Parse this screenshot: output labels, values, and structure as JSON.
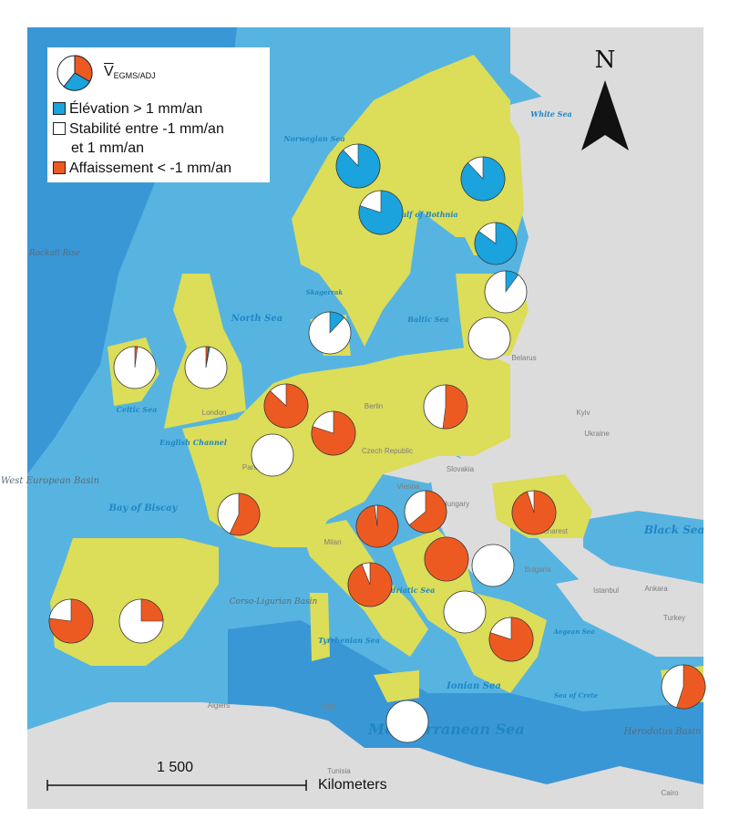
{
  "legend": {
    "symbol": "V",
    "subscript": "EGMS/ADJ",
    "items": [
      {
        "label": "Élévation > 1 mm/an",
        "color": "#1aa3dc"
      },
      {
        "label": "Stabilité entre -1 mm/an",
        "label2": "et 1 mm/an",
        "color": "#ffffff"
      },
      {
        "label": "Affaissement < -1 mm/an",
        "color": "#ec5a22"
      }
    ]
  },
  "north_arrow": {
    "label": "N"
  },
  "scale_bar": {
    "distance": "1 500",
    "unit": "Kilometers"
  },
  "colors": {
    "land_study": "#dcdd58",
    "land_other": "#dcdcdc",
    "sea": "#57b4e0",
    "deep_sea": "#2e8ed0",
    "elevation": "#1aa3dc",
    "stability": "#ffffff",
    "subsidence": "#ec5a22"
  },
  "sea_labels": [
    "Norwegian Sea",
    "White Sea",
    "Gulf of Bothnia",
    "North Sea",
    "Skagerrak",
    "Baltic Sea",
    "Celtic Sea",
    "English Channel",
    "Bay of Biscay",
    "Adriatic Sea",
    "Tyrrhenian Sea",
    "Ionian Sea",
    "Aegean Sea",
    "Sea of Crete",
    "Black Sea",
    "Mediterranean Sea",
    "West European Basin",
    "Corso-Ligurian Basin",
    "Herodotus Basin",
    "Rockall Rise"
  ],
  "place_labels": [
    "Czech Republic",
    "Slovakia",
    "Hungary",
    "Vienna",
    "Bulgaria",
    "Ukraine",
    "Belarus",
    "Kyiv",
    "Istanbul",
    "Ankara",
    "Turkey",
    "Algiers",
    "Tunis",
    "Tunisia",
    "Cairo",
    "Bucharest",
    "Milan",
    "London",
    "Paris",
    "Berlin"
  ],
  "pies": [
    {
      "id": "norway",
      "elevation": 0.88,
      "stability": 0.12,
      "subsidence": 0.0
    },
    {
      "id": "sweden-central",
      "elevation": 0.8,
      "stability": 0.2,
      "subsidence": 0.0
    },
    {
      "id": "finland-north",
      "elevation": 0.88,
      "stability": 0.12,
      "subsidence": 0.0
    },
    {
      "id": "finland-south",
      "elevation": 0.85,
      "stability": 0.15,
      "subsidence": 0.0
    },
    {
      "id": "estonia",
      "elevation": 0.1,
      "stability": 0.9,
      "subsidence": 0.0
    },
    {
      "id": "denmark",
      "elevation": 0.12,
      "stability": 0.88,
      "subsidence": 0.0
    },
    {
      "id": "latvia-lithuania",
      "elevation": 0.0,
      "stability": 1.0,
      "subsidence": 0.0
    },
    {
      "id": "ireland",
      "elevation": 0.0,
      "stability": 0.98,
      "subsidence": 0.02
    },
    {
      "id": "united-kingdom",
      "elevation": 0.01,
      "stability": 0.97,
      "subsidence": 0.02
    },
    {
      "id": "netherlands",
      "elevation": 0.0,
      "stability": 0.13,
      "subsidence": 0.87
    },
    {
      "id": "germany",
      "elevation": 0.0,
      "stability": 0.2,
      "subsidence": 0.8
    },
    {
      "id": "poland",
      "elevation": 0.0,
      "stability": 0.48,
      "subsidence": 0.52
    },
    {
      "id": "belgium-lux",
      "elevation": 0.0,
      "stability": 1.0,
      "subsidence": 0.0
    },
    {
      "id": "france",
      "elevation": 0.0,
      "stability": 0.43,
      "subsidence": 0.57
    },
    {
      "id": "austria",
      "elevation": 0.0,
      "stability": 0.36,
      "subsidence": 0.64
    },
    {
      "id": "slovenia",
      "elevation": 0.0,
      "stability": 0.02,
      "subsidence": 0.98
    },
    {
      "id": "romania",
      "elevation": 0.0,
      "stability": 0.05,
      "subsidence": 0.95
    },
    {
      "id": "croatia",
      "elevation": 0.0,
      "stability": 0.0,
      "subsidence": 1.0
    },
    {
      "id": "serbia-bih",
      "elevation": 0.0,
      "stability": 1.0,
      "subsidence": 0.0
    },
    {
      "id": "italy",
      "elevation": 0.0,
      "stability": 0.06,
      "subsidence": 0.94
    },
    {
      "id": "montenegro-albania",
      "elevation": 0.0,
      "stability": 1.0,
      "subsidence": 0.0
    },
    {
      "id": "portugal",
      "elevation": 0.0,
      "stability": 0.23,
      "subsidence": 0.77
    },
    {
      "id": "spain",
      "elevation": 0.0,
      "stability": 0.75,
      "subsidence": 0.25
    },
    {
      "id": "greece",
      "elevation": 0.0,
      "stability": 0.2,
      "subsidence": 0.8
    },
    {
      "id": "sicily-malta",
      "elevation": 0.0,
      "stability": 1.0,
      "subsidence": 0.0
    },
    {
      "id": "cyprus",
      "elevation": 0.0,
      "stability": 0.45,
      "subsidence": 0.55
    }
  ]
}
